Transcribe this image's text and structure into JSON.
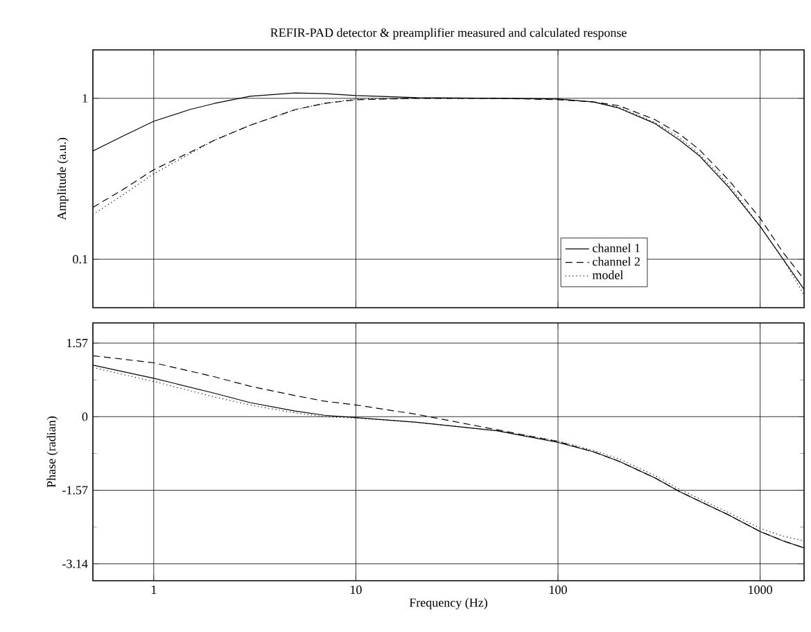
{
  "chart_data": [
    {
      "type": "line",
      "title": "REFIR-PAD detector & preamplifier measured and calculated response",
      "ylabel": "Amplitude (a.u.)",
      "log": "xy",
      "grid": true,
      "legend": "bottom right",
      "tick_labels": "y",
      "xlim": [
        0.5,
        1650
      ],
      "xticks": [
        1,
        10,
        100,
        1000
      ],
      "ylim": [
        0.05,
        2
      ],
      "yticks": [
        0.1,
        1
      ],
      "series": [
        {
          "name": "channel 1",
          "color": "#000000",
          "line_style": "solid",
          "x": [
            0.5,
            0.7,
            1,
            1.5,
            2,
            3,
            5,
            7,
            10,
            20,
            50,
            100,
            150,
            200,
            300,
            400,
            500,
            700,
            1000,
            1300,
            1650
          ],
          "values": [
            0.47,
            0.58,
            0.72,
            0.85,
            0.93,
            1.03,
            1.08,
            1.07,
            1.04,
            1.01,
            1.0,
            0.99,
            0.95,
            0.87,
            0.7,
            0.55,
            0.44,
            0.28,
            0.16,
            0.1,
            0.065
          ]
        },
        {
          "name": "channel 2",
          "color": "#000000",
          "line_style": "dashed",
          "x": [
            0.5,
            0.7,
            1,
            1.5,
            2,
            3,
            5,
            7,
            10,
            20,
            50,
            100,
            150,
            200,
            300,
            400,
            500,
            700,
            1000,
            1300,
            1650
          ],
          "values": [
            0.21,
            0.27,
            0.36,
            0.46,
            0.55,
            0.68,
            0.85,
            0.93,
            0.98,
            1.0,
            1.0,
            0.98,
            0.95,
            0.9,
            0.74,
            0.6,
            0.48,
            0.31,
            0.18,
            0.11,
            0.075
          ]
        },
        {
          "name": "model",
          "color": "#000000",
          "line_style": "dotted",
          "x": [
            0.5,
            0.7,
            1,
            1.5,
            2,
            3,
            5,
            7,
            10,
            20,
            50,
            100,
            150,
            200,
            300,
            400,
            500,
            700,
            1000,
            1300,
            1650
          ],
          "values": [
            0.19,
            0.25,
            0.34,
            0.45,
            0.55,
            0.68,
            0.85,
            0.93,
            0.99,
            1.0,
            1.0,
            0.99,
            0.95,
            0.88,
            0.71,
            0.57,
            0.45,
            0.29,
            0.16,
            0.1,
            0.06
          ]
        }
      ]
    },
    {
      "type": "line",
      "xlabel": "Frequency (Hz)",
      "ylabel": "Phase (radian)",
      "log": "x",
      "grid": true,
      "legend": false,
      "xlim": [
        0.5,
        1650
      ],
      "xticks": [
        1,
        10,
        100,
        1000
      ],
      "ylim": [
        -3.5,
        2.0
      ],
      "yticks": [
        1.57,
        0,
        -1.57,
        -3.14
      ],
      "series": [
        {
          "color": "#000000",
          "line_style": "solid",
          "x": [
            0.5,
            1,
            2,
            3,
            5,
            7,
            10,
            20,
            50,
            100,
            150,
            200,
            300,
            400,
            500,
            700,
            1000,
            1300,
            1650
          ],
          "values": [
            1.1,
            0.82,
            0.5,
            0.3,
            0.12,
            0.03,
            -0.02,
            -0.12,
            -0.3,
            -0.55,
            -0.75,
            -0.95,
            -1.3,
            -1.6,
            -1.8,
            -2.1,
            -2.45,
            -2.65,
            -2.8
          ]
        },
        {
          "color": "#000000",
          "line_style": "dashed",
          "x": [
            0.5,
            1,
            2,
            3,
            5,
            7,
            10,
            20,
            50,
            100,
            150,
            200,
            300,
            400,
            500,
            700,
            1000,
            1300,
            1650
          ],
          "values": [
            1.3,
            1.15,
            0.85,
            0.65,
            0.45,
            0.33,
            0.25,
            0.05,
            -0.28,
            -0.53,
            -0.75,
            -0.95,
            -1.3,
            -1.6,
            -1.8,
            -2.1,
            -2.45,
            -2.65,
            -2.8
          ]
        },
        {
          "color": "#000000",
          "line_style": "dotted",
          "x": [
            0.5,
            1,
            2,
            3,
            5,
            7,
            10,
            20,
            50,
            100,
            150,
            200,
            300,
            400,
            500,
            700,
            1000,
            1300,
            1650
          ],
          "values": [
            1.05,
            0.75,
            0.42,
            0.25,
            0.08,
            0.0,
            -0.03,
            -0.12,
            -0.3,
            -0.52,
            -0.72,
            -0.9,
            -1.25,
            -1.55,
            -1.75,
            -2.05,
            -2.38,
            -2.55,
            -2.65
          ]
        }
      ]
    }
  ]
}
